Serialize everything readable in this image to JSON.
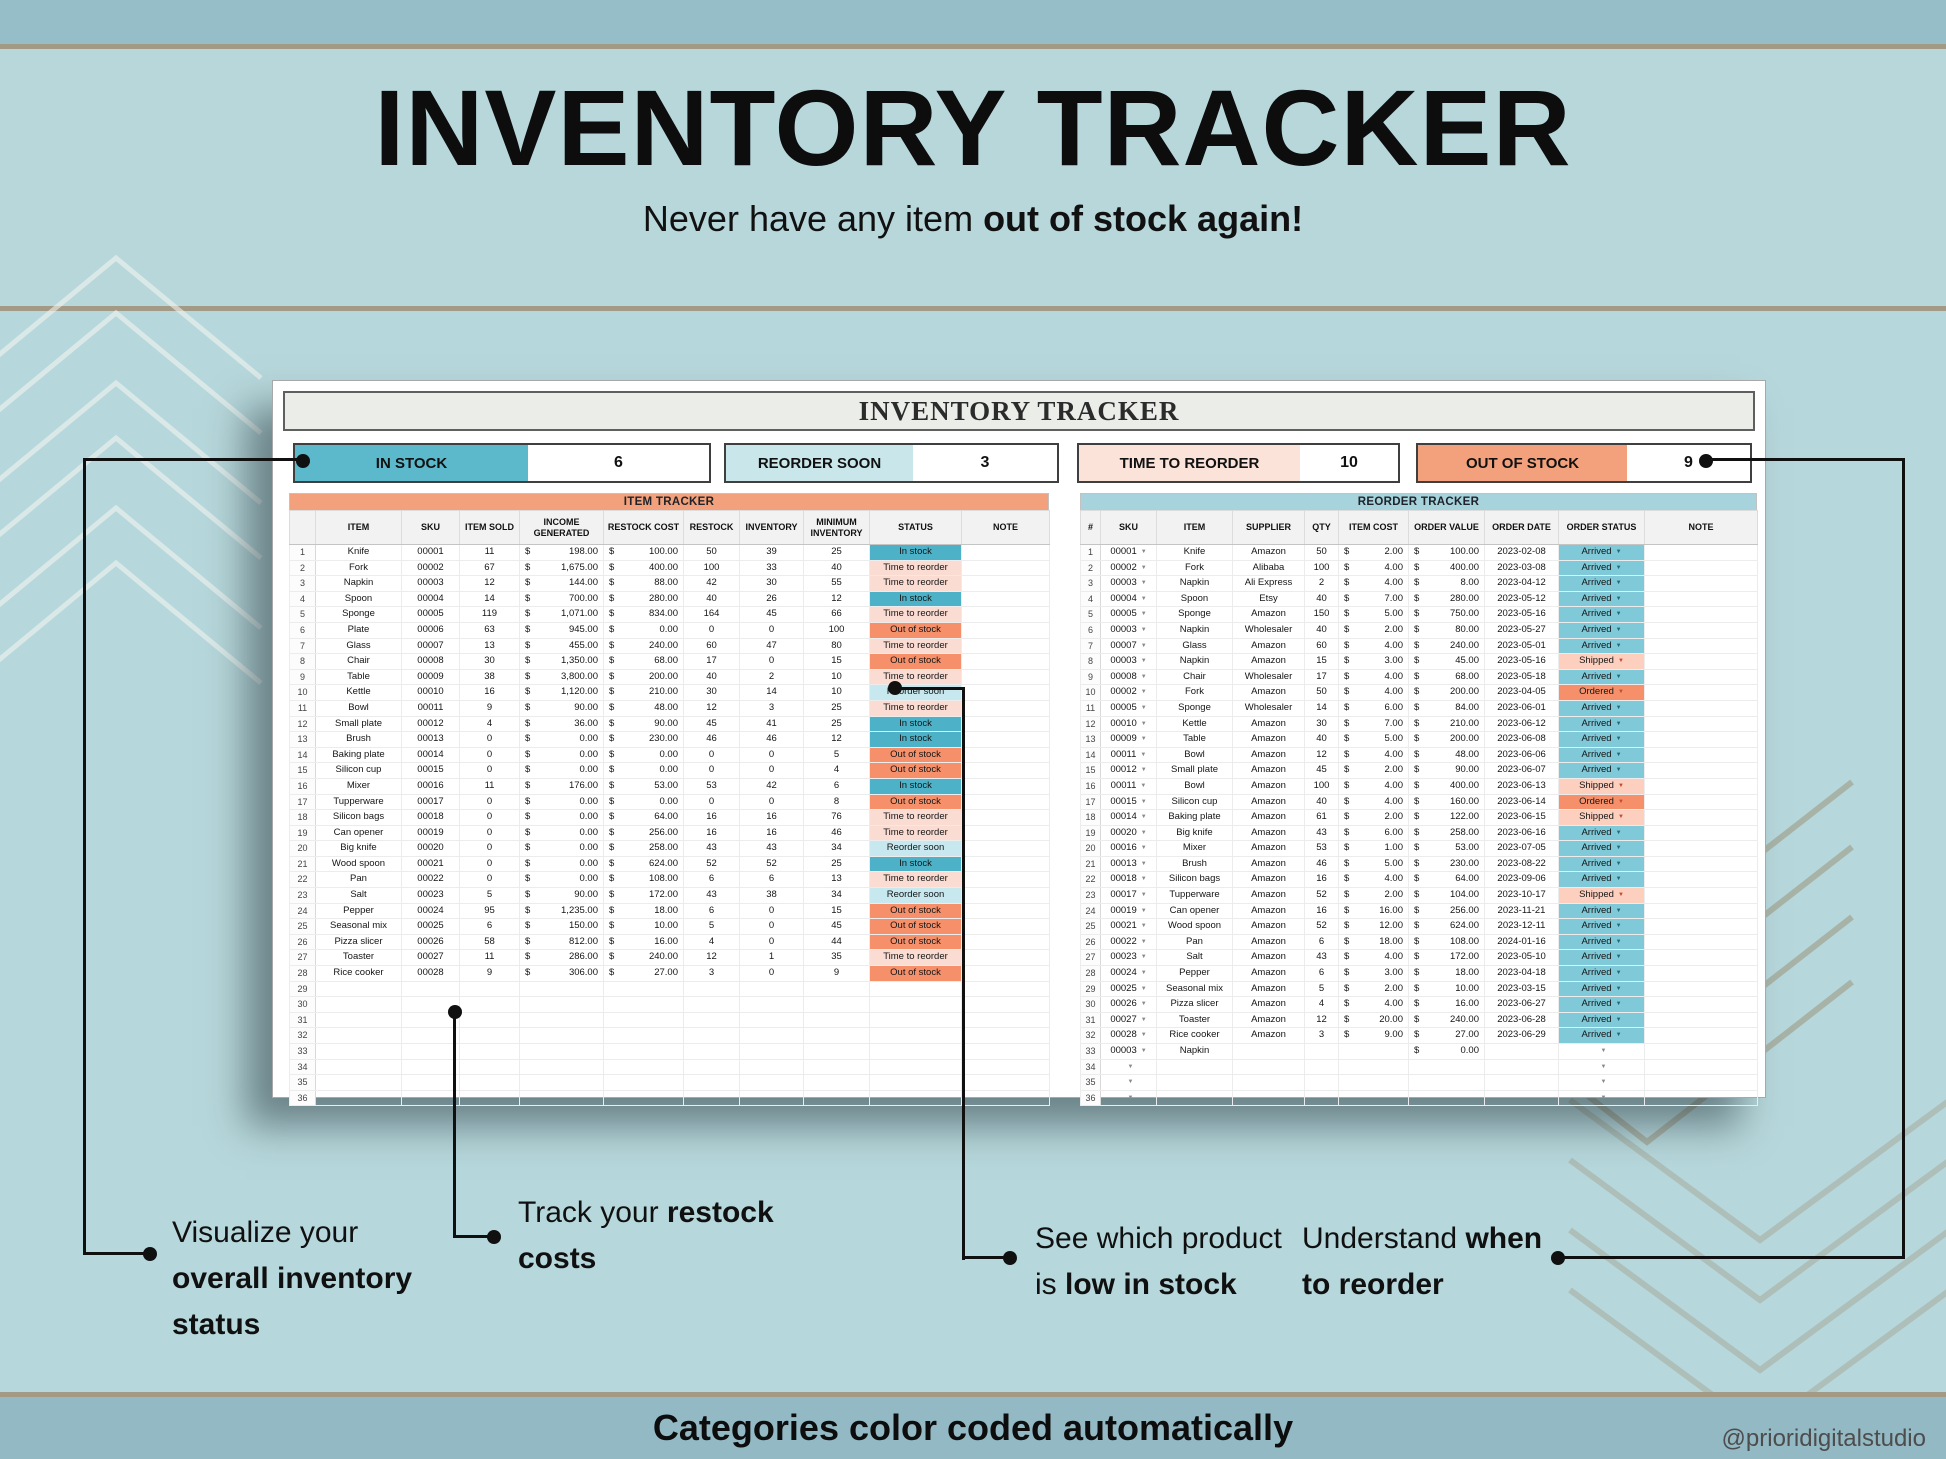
{
  "page": {
    "title": "INVENTORY TRACKER",
    "subtitle_prefix": "Never have any item ",
    "subtitle_bold": "out of stock again!",
    "banner": "Categories color coded automatically",
    "watermark": "@prioridigitalstudio"
  },
  "sheet": {
    "title": "INVENTORY TRACKER",
    "summary": [
      {
        "label": "IN STOCK",
        "value": "6",
        "color": "#5cb8cb"
      },
      {
        "label": "REORDER SOON",
        "value": "3",
        "color": "#c9e7eb"
      },
      {
        "label": "TIME TO REORDER",
        "value": "10",
        "color": "#fbe3da"
      },
      {
        "label": "OUT OF STOCK",
        "value": "9",
        "color": "#f2a17c"
      }
    ]
  },
  "status_colors": {
    "In stock": "#4db2c8",
    "Time to reorder": "#fbdcd3",
    "Out of stock": "#f5906b",
    "Reorder soon": "#c6e8ee",
    "Arrived": "#7fc9d8",
    "Shipped": "#fccfbe",
    "Ordered": "#f5906b"
  },
  "item_tracker": {
    "band": "ITEM TRACKER",
    "band_color": "#f2a17c",
    "columns": [
      "",
      "ITEM",
      "SKU",
      "ITEM SOLD",
      "INCOME GENERATED",
      "RESTOCK COST",
      "RESTOCK",
      "INVENTORY",
      "MINIMUM INVENTORY",
      "STATUS",
      "NOTE"
    ],
    "rows": [
      [
        1,
        "Knife",
        "00001",
        "11",
        "198.00",
        "100.00",
        "50",
        "39",
        "25",
        "In stock"
      ],
      [
        2,
        "Fork",
        "00002",
        "67",
        "1,675.00",
        "400.00",
        "100",
        "33",
        "40",
        "Time to reorder"
      ],
      [
        3,
        "Napkin",
        "00003",
        "12",
        "144.00",
        "88.00",
        "42",
        "30",
        "55",
        "Time to reorder"
      ],
      [
        4,
        "Spoon",
        "00004",
        "14",
        "700.00",
        "280.00",
        "40",
        "26",
        "12",
        "In stock"
      ],
      [
        5,
        "Sponge",
        "00005",
        "119",
        "1,071.00",
        "834.00",
        "164",
        "45",
        "66",
        "Time to reorder"
      ],
      [
        6,
        "Plate",
        "00006",
        "63",
        "945.00",
        "0.00",
        "0",
        "0",
        "100",
        "Out of stock"
      ],
      [
        7,
        "Glass",
        "00007",
        "13",
        "455.00",
        "240.00",
        "60",
        "47",
        "80",
        "Time to reorder"
      ],
      [
        8,
        "Chair",
        "00008",
        "30",
        "1,350.00",
        "68.00",
        "17",
        "0",
        "15",
        "Out of stock"
      ],
      [
        9,
        "Table",
        "00009",
        "38",
        "3,800.00",
        "200.00",
        "40",
        "2",
        "10",
        "Time to reorder"
      ],
      [
        10,
        "Kettle",
        "00010",
        "16",
        "1,120.00",
        "210.00",
        "30",
        "14",
        "10",
        "Reorder soon"
      ],
      [
        11,
        "Bowl",
        "00011",
        "9",
        "90.00",
        "48.00",
        "12",
        "3",
        "25",
        "Time to reorder"
      ],
      [
        12,
        "Small plate",
        "00012",
        "4",
        "36.00",
        "90.00",
        "45",
        "41",
        "25",
        "In stock"
      ],
      [
        13,
        "Brush",
        "00013",
        "0",
        "0.00",
        "230.00",
        "46",
        "46",
        "12",
        "In stock"
      ],
      [
        14,
        "Baking plate",
        "00014",
        "0",
        "0.00",
        "0.00",
        "0",
        "0",
        "5",
        "Out of stock"
      ],
      [
        15,
        "Silicon cup",
        "00015",
        "0",
        "0.00",
        "0.00",
        "0",
        "0",
        "4",
        "Out of stock"
      ],
      [
        16,
        "Mixer",
        "00016",
        "11",
        "176.00",
        "53.00",
        "53",
        "42",
        "6",
        "In stock"
      ],
      [
        17,
        "Tupperware",
        "00017",
        "0",
        "0.00",
        "0.00",
        "0",
        "0",
        "8",
        "Out of stock"
      ],
      [
        18,
        "Silicon bags",
        "00018",
        "0",
        "0.00",
        "64.00",
        "16",
        "16",
        "76",
        "Time to reorder"
      ],
      [
        19,
        "Can opener",
        "00019",
        "0",
        "0.00",
        "256.00",
        "16",
        "16",
        "46",
        "Time to reorder"
      ],
      [
        20,
        "Big knife",
        "00020",
        "0",
        "0.00",
        "258.00",
        "43",
        "43",
        "34",
        "Reorder soon"
      ],
      [
        21,
        "Wood spoon",
        "00021",
        "0",
        "0.00",
        "624.00",
        "52",
        "52",
        "25",
        "In stock"
      ],
      [
        22,
        "Pan",
        "00022",
        "0",
        "0.00",
        "108.00",
        "6",
        "6",
        "13",
        "Time to reorder"
      ],
      [
        23,
        "Salt",
        "00023",
        "5",
        "90.00",
        "172.00",
        "43",
        "38",
        "34",
        "Reorder soon"
      ],
      [
        24,
        "Pepper",
        "00024",
        "95",
        "1,235.00",
        "18.00",
        "6",
        "0",
        "15",
        "Out of stock"
      ],
      [
        25,
        "Seasonal mix",
        "00025",
        "6",
        "150.00",
        "10.00",
        "5",
        "0",
        "45",
        "Out of stock"
      ],
      [
        26,
        "Pizza slicer",
        "00026",
        "58",
        "812.00",
        "16.00",
        "4",
        "0",
        "44",
        "Out of stock"
      ],
      [
        27,
        "Toaster",
        "00027",
        "11",
        "286.00",
        "240.00",
        "12",
        "1",
        "35",
        "Time to reorder"
      ],
      [
        28,
        "Rice cooker",
        "00028",
        "9",
        "306.00",
        "27.00",
        "3",
        "0",
        "9",
        "Out of stock"
      ]
    ],
    "empty_rows": [
      29,
      30,
      31,
      32,
      33,
      34,
      35,
      36
    ]
  },
  "reorder_tracker": {
    "band": "REORDER TRACKER",
    "band_color": "#a6d3dc",
    "columns": [
      "#",
      "SKU",
      "ITEM",
      "SUPPLIER",
      "QTY",
      "ITEM COST",
      "ORDER VALUE",
      "ORDER DATE",
      "ORDER STATUS",
      "NOTE"
    ],
    "rows": [
      [
        1,
        "00001",
        "Knife",
        "Amazon",
        "50",
        "2.00",
        "100.00",
        "2023-02-08",
        "Arrived"
      ],
      [
        2,
        "00002",
        "Fork",
        "Alibaba",
        "100",
        "4.00",
        "400.00",
        "2023-03-08",
        "Arrived"
      ],
      [
        3,
        "00003",
        "Napkin",
        "Ali Express",
        "2",
        "4.00",
        "8.00",
        "2023-04-12",
        "Arrived"
      ],
      [
        4,
        "00004",
        "Spoon",
        "Etsy",
        "40",
        "7.00",
        "280.00",
        "2023-05-12",
        "Arrived"
      ],
      [
        5,
        "00005",
        "Sponge",
        "Amazon",
        "150",
        "5.00",
        "750.00",
        "2023-05-16",
        "Arrived"
      ],
      [
        6,
        "00003",
        "Napkin",
        "Wholesaler",
        "40",
        "2.00",
        "80.00",
        "2023-05-27",
        "Arrived"
      ],
      [
        7,
        "00007",
        "Glass",
        "Amazon",
        "60",
        "4.00",
        "240.00",
        "2023-05-01",
        "Arrived"
      ],
      [
        8,
        "00003",
        "Napkin",
        "Amazon",
        "15",
        "3.00",
        "45.00",
        "2023-05-16",
        "Shipped"
      ],
      [
        9,
        "00008",
        "Chair",
        "Wholesaler",
        "17",
        "4.00",
        "68.00",
        "2023-05-18",
        "Arrived"
      ],
      [
        10,
        "00002",
        "Fork",
        "Amazon",
        "50",
        "4.00",
        "200.00",
        "2023-04-05",
        "Ordered"
      ],
      [
        11,
        "00005",
        "Sponge",
        "Wholesaler",
        "14",
        "6.00",
        "84.00",
        "2023-06-01",
        "Arrived"
      ],
      [
        12,
        "00010",
        "Kettle",
        "Amazon",
        "30",
        "7.00",
        "210.00",
        "2023-06-12",
        "Arrived"
      ],
      [
        13,
        "00009",
        "Table",
        "Amazon",
        "40",
        "5.00",
        "200.00",
        "2023-06-08",
        "Arrived"
      ],
      [
        14,
        "00011",
        "Bowl",
        "Amazon",
        "12",
        "4.00",
        "48.00",
        "2023-06-06",
        "Arrived"
      ],
      [
        15,
        "00012",
        "Small plate",
        "Amazon",
        "45",
        "2.00",
        "90.00",
        "2023-06-07",
        "Arrived"
      ],
      [
        16,
        "00011",
        "Bowl",
        "Amazon",
        "100",
        "4.00",
        "400.00",
        "2023-06-13",
        "Shipped"
      ],
      [
        17,
        "00015",
        "Silicon cup",
        "Amazon",
        "40",
        "4.00",
        "160.00",
        "2023-06-14",
        "Ordered"
      ],
      [
        18,
        "00014",
        "Baking plate",
        "Amazon",
        "61",
        "2.00",
        "122.00",
        "2023-06-15",
        "Shipped"
      ],
      [
        19,
        "00020",
        "Big knife",
        "Amazon",
        "43",
        "6.00",
        "258.00",
        "2023-06-16",
        "Arrived"
      ],
      [
        20,
        "00016",
        "Mixer",
        "Amazon",
        "53",
        "1.00",
        "53.00",
        "2023-07-05",
        "Arrived"
      ],
      [
        21,
        "00013",
        "Brush",
        "Amazon",
        "46",
        "5.00",
        "230.00",
        "2023-08-22",
        "Arrived"
      ],
      [
        22,
        "00018",
        "Silicon bags",
        "Amazon",
        "16",
        "4.00",
        "64.00",
        "2023-09-06",
        "Arrived"
      ],
      [
        23,
        "00017",
        "Tupperware",
        "Amazon",
        "52",
        "2.00",
        "104.00",
        "2023-10-17",
        "Shipped"
      ],
      [
        24,
        "00019",
        "Can opener",
        "Amazon",
        "16",
        "16.00",
        "256.00",
        "2023-11-21",
        "Arrived"
      ],
      [
        25,
        "00021",
        "Wood spoon",
        "Amazon",
        "52",
        "12.00",
        "624.00",
        "2023-12-11",
        "Arrived"
      ],
      [
        26,
        "00022",
        "Pan",
        "Amazon",
        "6",
        "18.00",
        "108.00",
        "2024-01-16",
        "Arrived"
      ],
      [
        27,
        "00023",
        "Salt",
        "Amazon",
        "43",
        "4.00",
        "172.00",
        "2023-05-10",
        "Arrived"
      ],
      [
        28,
        "00024",
        "Pepper",
        "Amazon",
        "6",
        "3.00",
        "18.00",
        "2023-04-18",
        "Arrived"
      ],
      [
        29,
        "00025",
        "Seasonal mix",
        "Amazon",
        "5",
        "2.00",
        "10.00",
        "2023-03-15",
        "Arrived"
      ],
      [
        30,
        "00026",
        "Pizza slicer",
        "Amazon",
        "4",
        "4.00",
        "16.00",
        "2023-06-27",
        "Arrived"
      ],
      [
        31,
        "00027",
        "Toaster",
        "Amazon",
        "12",
        "20.00",
        "240.00",
        "2023-06-28",
        "Arrived"
      ],
      [
        32,
        "00028",
        "Rice cooker",
        "Amazon",
        "3",
        "9.00",
        "27.00",
        "2023-06-29",
        "Arrived"
      ],
      [
        33,
        "00003",
        "Napkin",
        "",
        "",
        "",
        "0.00",
        "",
        ""
      ]
    ],
    "empty_rows": [
      34,
      35,
      36
    ]
  },
  "callouts": [
    {
      "segments": [
        {
          "t": "Visualize your ",
          "b": false
        },
        {
          "t": "overall inventory status",
          "b": true
        }
      ]
    },
    {
      "segments": [
        {
          "t": "Track your ",
          "b": false
        },
        {
          "t": "restock costs",
          "b": true
        }
      ]
    },
    {
      "segments": [
        {
          "t": "See which product is ",
          "b": false
        },
        {
          "t": "low in stock",
          "b": true
        }
      ]
    },
    {
      "segments": [
        {
          "t": "Understand ",
          "b": false
        },
        {
          "t": "when to reorder",
          "b": true
        }
      ]
    }
  ]
}
